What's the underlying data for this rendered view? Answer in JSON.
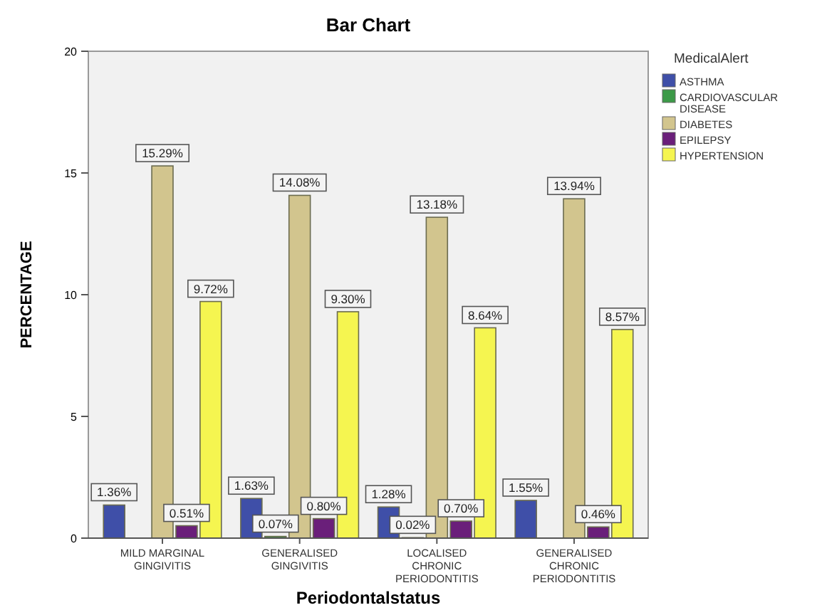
{
  "chart_data": {
    "type": "bar",
    "title": "Bar Chart",
    "xlabel": "Periodontalstatus",
    "ylabel": "PERCENTAGE",
    "legend_title": "MedicalAlert",
    "categories": [
      "MILD MARGINAL GINGIVITIS",
      "GENERALISED GINGIVITIS",
      "LOCALISED CHRONIC PERIODONTITIS",
      "GENERALISED CHRONIC PERIODONTITIS"
    ],
    "series": [
      {
        "name": "ASTHMA",
        "color": "#3f4fa8",
        "values": [
          1.36,
          1.63,
          1.28,
          1.55
        ],
        "value_labels": [
          "1.36%",
          "1.63%",
          "1.28%",
          "1.55%"
        ]
      },
      {
        "name": "CARDIOVASCULAR DISEASE",
        "color": "#3c9a48",
        "values": [
          null,
          0.07,
          0.02,
          null
        ],
        "value_labels": [
          null,
          "0.07%",
          "0.02%",
          null
        ]
      },
      {
        "name": "DIABETES",
        "color": "#d2c58e",
        "values": [
          15.29,
          14.08,
          13.18,
          13.94
        ],
        "value_labels": [
          "15.29%",
          "14.08%",
          "13.18%",
          "13.94%"
        ]
      },
      {
        "name": "EPILEPSY",
        "color": "#6a1f7a",
        "values": [
          0.51,
          0.8,
          0.7,
          0.46
        ],
        "value_labels": [
          "0.51%",
          "0.80%",
          "0.70%",
          "0.46%"
        ]
      },
      {
        "name": "HYPERTENSION",
        "color": "#f5f550",
        "values": [
          9.72,
          9.3,
          8.64,
          8.57
        ],
        "value_labels": [
          "9.72%",
          "9.30%",
          "8.64%",
          "8.57%"
        ]
      }
    ],
    "ylim": [
      0,
      20
    ],
    "yticks": [
      0,
      5,
      10,
      15,
      20
    ],
    "grid": false,
    "legend": "right"
  }
}
